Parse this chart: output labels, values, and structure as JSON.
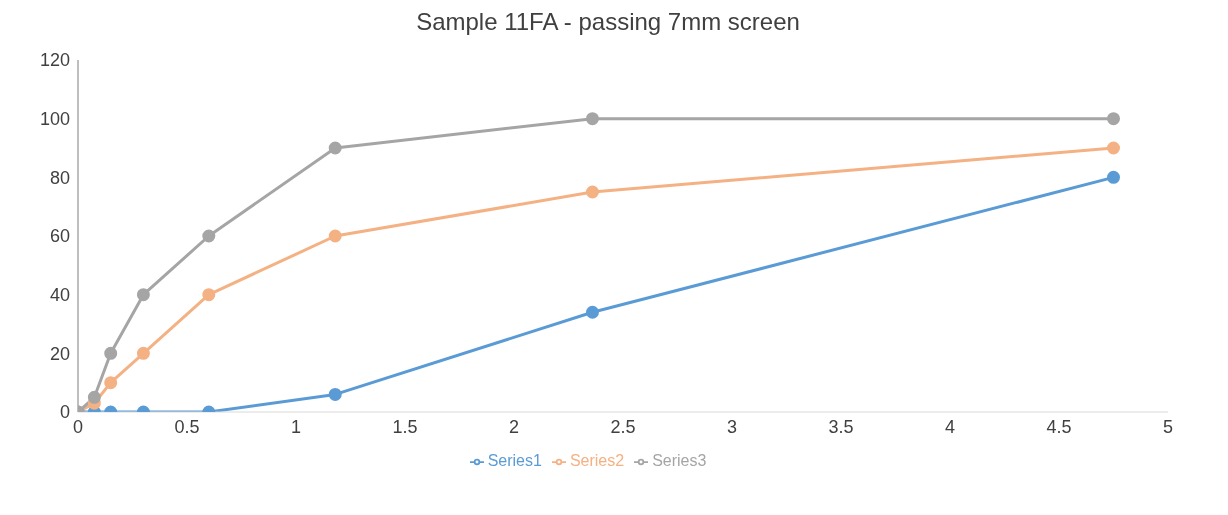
{
  "chart_data": {
    "type": "line",
    "title": "Sample 11FA - passing  7mm screen",
    "x": [
      0,
      0.075,
      0.15,
      0.3,
      0.6,
      1.18,
      2.36,
      4.75
    ],
    "series": [
      {
        "name": "Series1",
        "color": "#5b9bd5",
        "values": [
          0,
          0,
          0,
          0,
          0,
          6,
          34,
          80
        ]
      },
      {
        "name": "Series2",
        "color": "#f4b183",
        "values": [
          0,
          3,
          10,
          20,
          40,
          60,
          75,
          90
        ]
      },
      {
        "name": "Series3",
        "color": "#a5a5a5",
        "values": [
          0,
          5,
          20,
          40,
          60,
          90,
          100,
          100
        ]
      }
    ],
    "xlim": [
      0,
      5
    ],
    "xticks": [
      0,
      0.5,
      1,
      1.5,
      2,
      2.5,
      3,
      3.5,
      4,
      4.5,
      5
    ],
    "ylim": [
      0,
      120
    ],
    "yticks": [
      0,
      20,
      40,
      60,
      80,
      100,
      120
    ],
    "grid": false,
    "legend": "bottom",
    "marker": "circle",
    "line_style": "solid"
  }
}
